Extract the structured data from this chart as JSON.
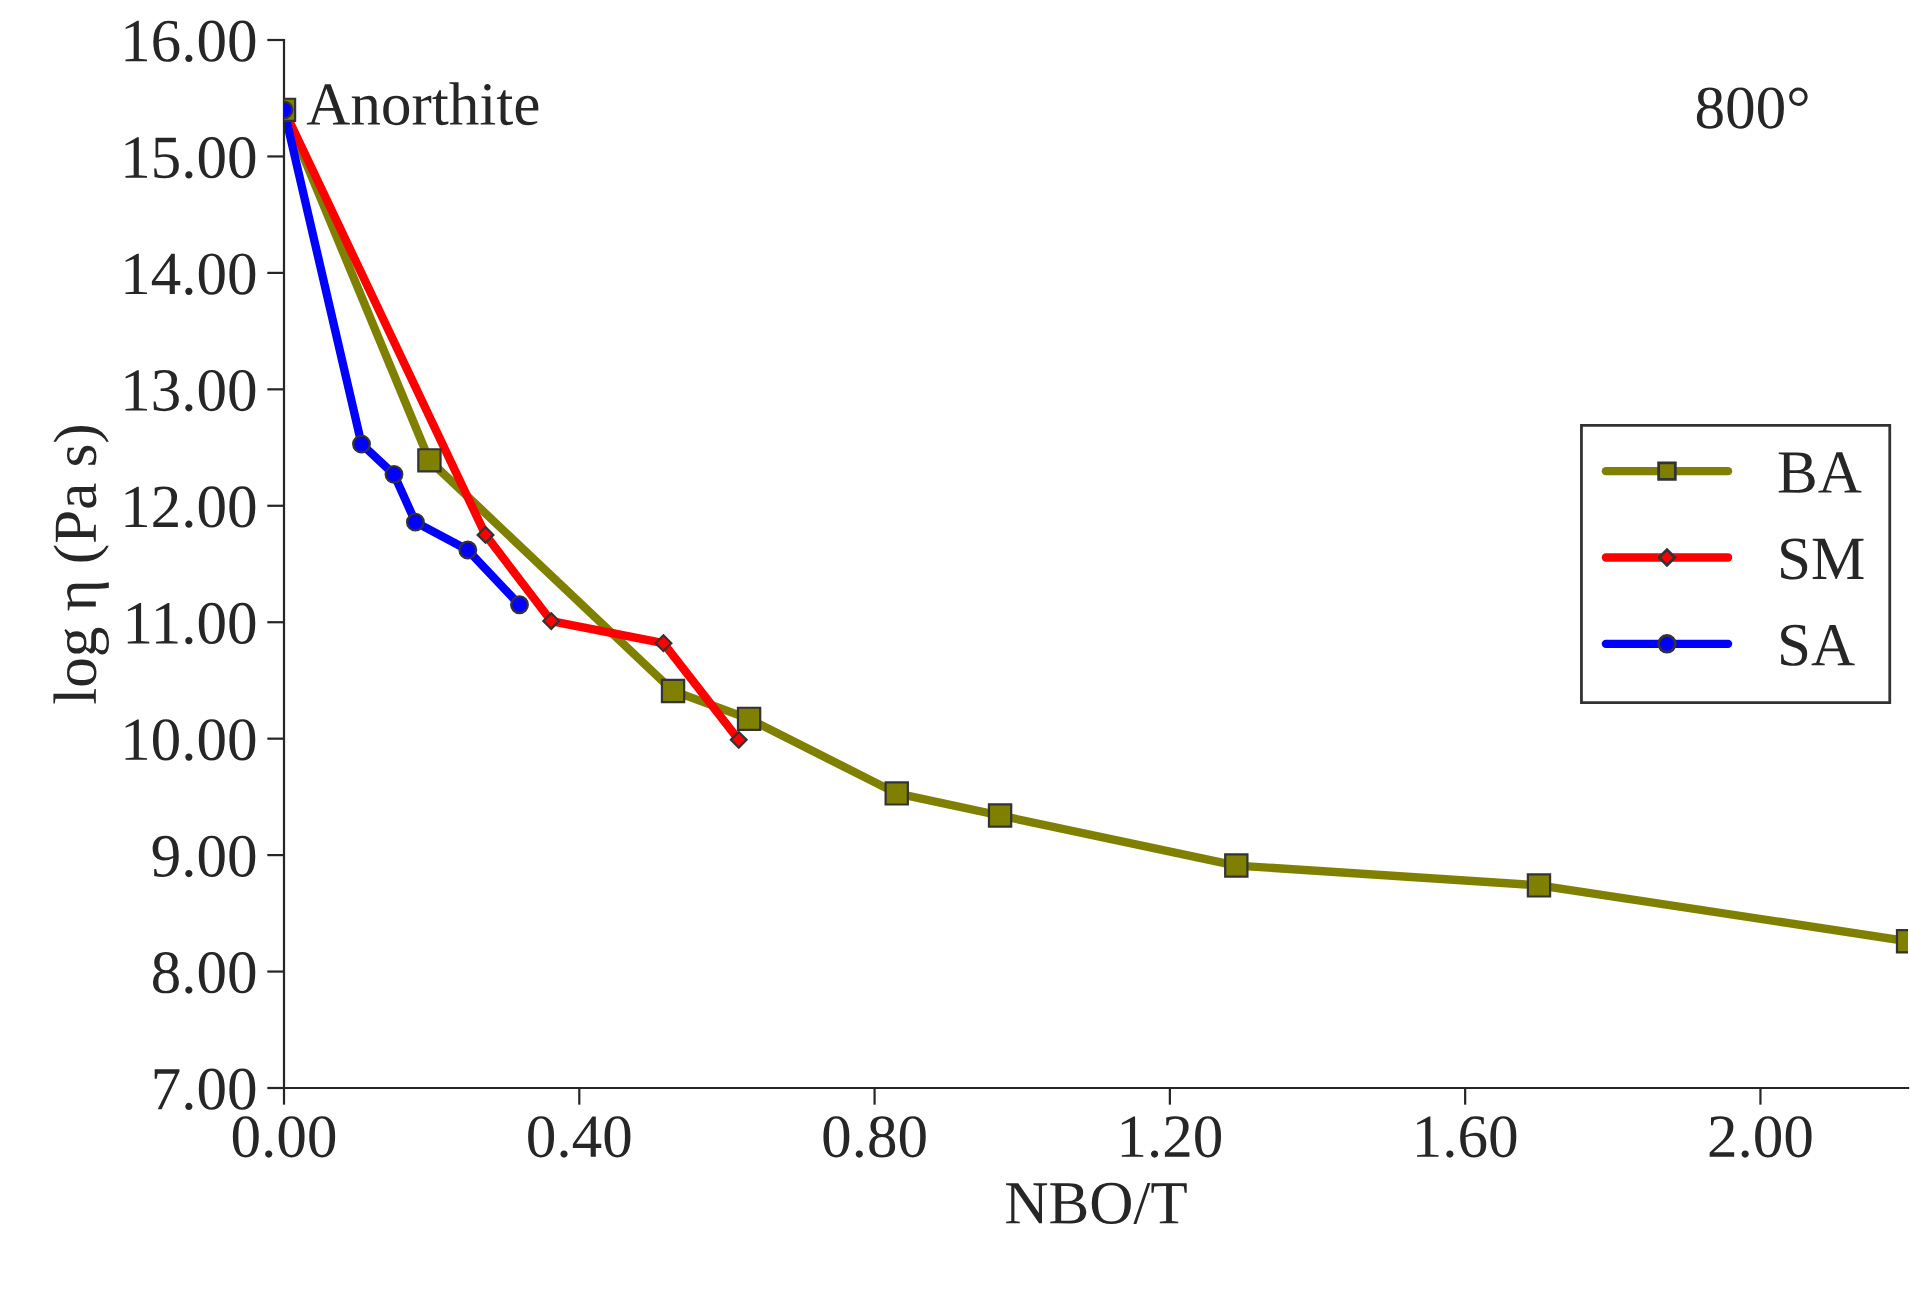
{
  "chart_data": {
    "type": "line",
    "xlabel": "NBO/T",
    "ylabel": "log η (Pa s)",
    "xlim": [
      0,
      2.2
    ],
    "ylim": [
      7,
      16
    ],
    "xticks": [
      {
        "value": 0,
        "label": "0.00"
      },
      {
        "value": 0.4,
        "label": "0.40"
      },
      {
        "value": 0.8,
        "label": "0.80"
      },
      {
        "value": 1.2,
        "label": "1.20"
      },
      {
        "value": 1.6,
        "label": "1.60"
      },
      {
        "value": 2.0,
        "label": "2.00"
      }
    ],
    "yticks": [
      {
        "value": 7,
        "label": "7.00"
      },
      {
        "value": 8,
        "label": "8.00"
      },
      {
        "value": 9,
        "label": "9.00"
      },
      {
        "value": 10,
        "label": "10.00"
      },
      {
        "value": 11,
        "label": "11.00"
      },
      {
        "value": 12,
        "label": "12.00"
      },
      {
        "value": 13,
        "label": "13.00"
      },
      {
        "value": 14,
        "label": "14.00"
      },
      {
        "value": 15,
        "label": "15.00"
      },
      {
        "value": 16,
        "label": "16.00"
      }
    ],
    "grid": false,
    "legend": "right",
    "annotations": [
      {
        "text": "Anorthite",
        "x": 0,
        "y": 15.4
      },
      "800°"
    ],
    "series": [
      {
        "name": "BA",
        "color": "#808000",
        "marker": "square",
        "x": [
          0,
          0.197,
          0.527,
          0.63,
          0.83,
          0.97,
          1.29,
          1.7,
          2.2
        ],
        "values": [
          15.4,
          12.39,
          10.41,
          10.17,
          9.53,
          9.34,
          8.91,
          8.74,
          8.26
        ]
      },
      {
        "name": "SM",
        "color": "#ff0000",
        "marker": "diamond",
        "x": [
          0,
          0.273,
          0.362,
          0.514,
          0.616
        ],
        "values": [
          15.4,
          11.75,
          11.01,
          10.82,
          9.99
        ]
      },
      {
        "name": "SA",
        "color": "#0000ff",
        "marker": "circle",
        "x": [
          0,
          0.105,
          0.149,
          0.178,
          0.249,
          0.319
        ],
        "values": [
          15.4,
          12.53,
          12.27,
          11.86,
          11.62,
          11.15
        ]
      }
    ]
  }
}
